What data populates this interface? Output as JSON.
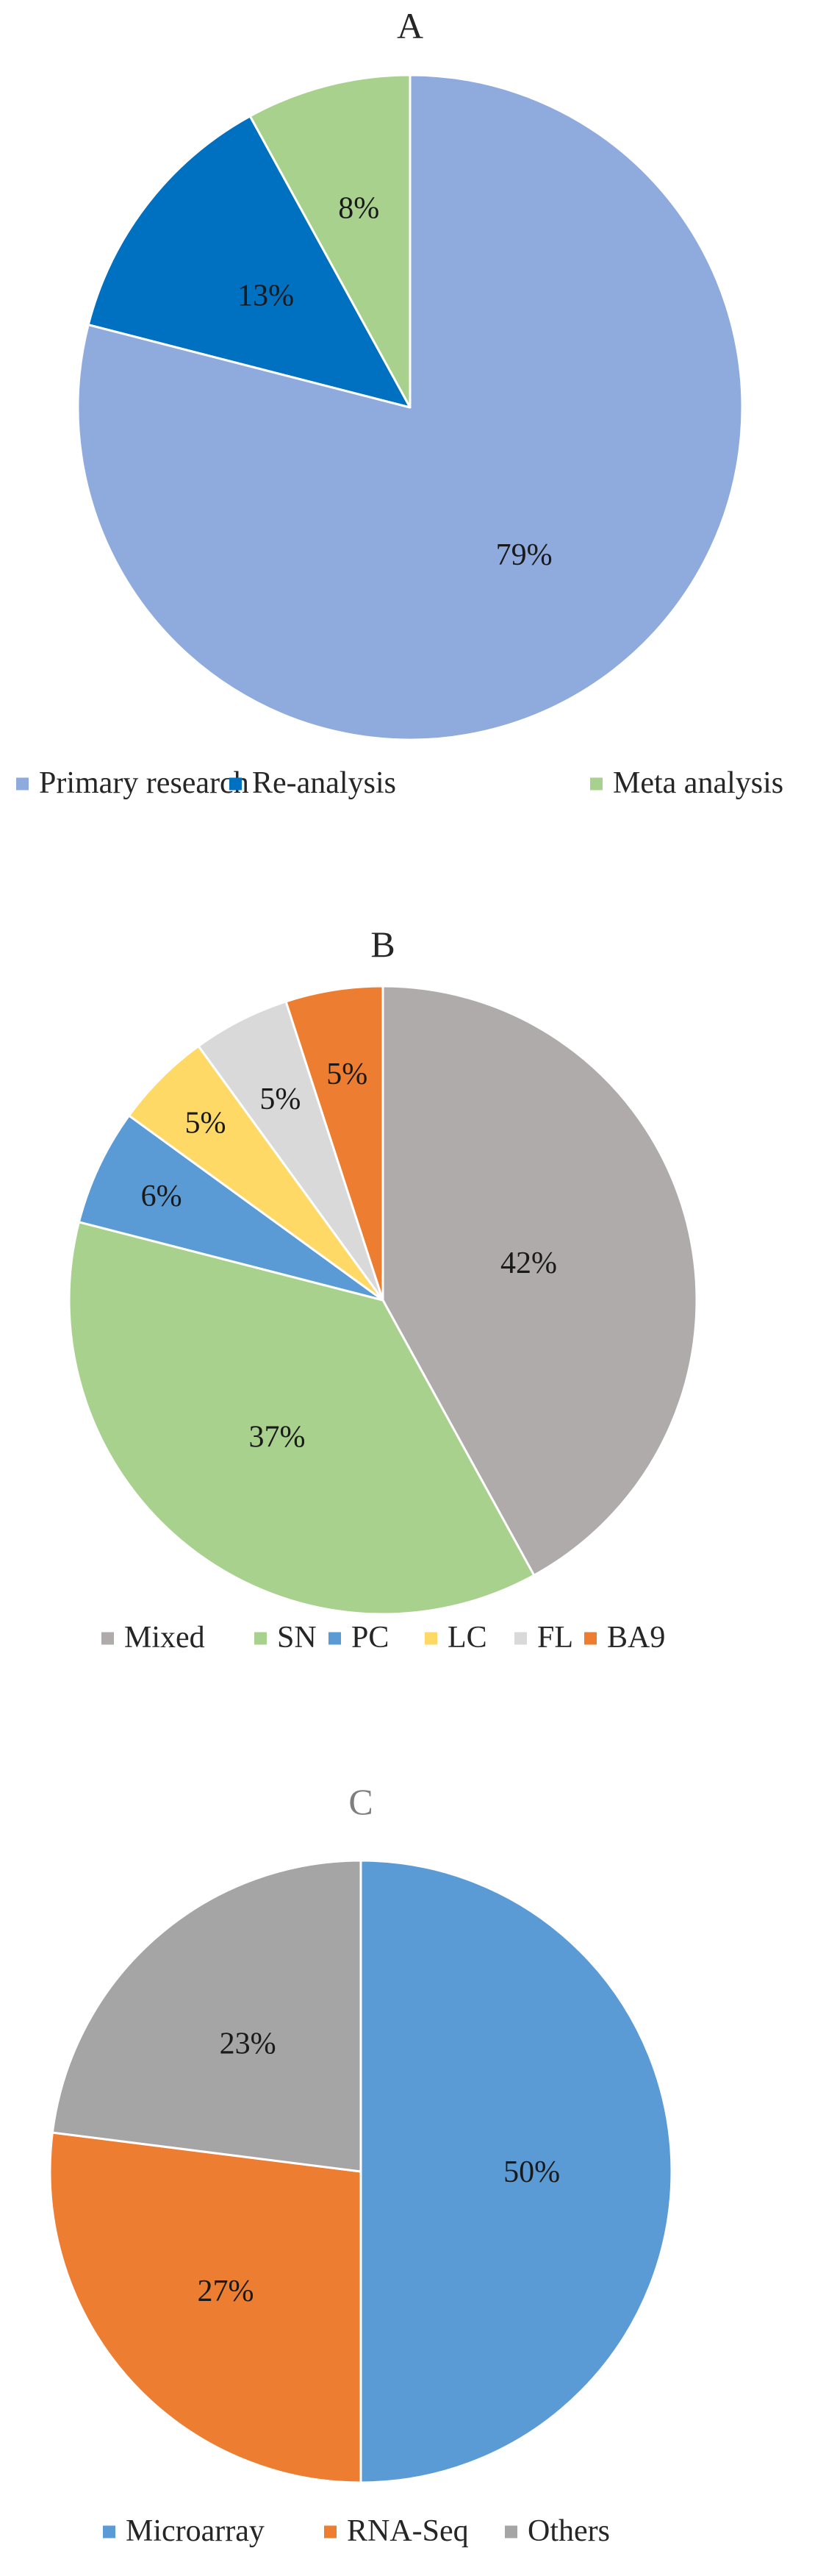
{
  "chart_data": [
    {
      "type": "pie",
      "title": "A",
      "categories": [
        "Primary research",
        "Re-analysis",
        "Meta analysis"
      ],
      "values": [
        79,
        13,
        8
      ],
      "data_labels": [
        "79%",
        "13%",
        "8%"
      ],
      "colors": [
        "#8faadc",
        "#0070c0",
        "#a9d18e"
      ],
      "legend": "bottom"
    },
    {
      "type": "pie",
      "title": "B",
      "categories": [
        "Mixed",
        "SN",
        "PC",
        "LC",
        "FL",
        "BA9"
      ],
      "values": [
        42,
        37,
        6,
        5,
        5,
        5
      ],
      "data_labels": [
        "42%",
        "37%",
        "6%",
        "5%",
        "5%",
        "5%"
      ],
      "colors": [
        "#afabab",
        "#a9d18e",
        "#5b9bd5",
        "#ffd966",
        "#d9d9d9",
        "#ed7d31"
      ],
      "legend": "bottom"
    },
    {
      "type": "pie",
      "title": "C",
      "categories": [
        "Microarray",
        "RNA-Seq",
        "Others"
      ],
      "values": [
        50,
        27,
        23
      ],
      "data_labels": [
        "50%",
        "27%",
        "23%"
      ],
      "colors": [
        "#5b9bd5",
        "#ed7d31",
        "#a5a5a5"
      ],
      "legend": "bottom"
    }
  ]
}
